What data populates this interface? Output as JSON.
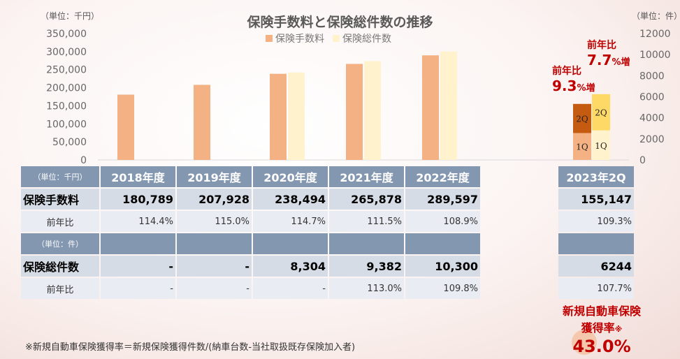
{
  "chart_data": {
    "type": "bar",
    "title": "保険手数料と保険総件数の推移",
    "left_unit": "（単位：千円）",
    "right_unit": "（単位：件）",
    "categories": [
      "2018年度",
      "2019年度",
      "2020年度",
      "2021年度",
      "2022年度"
    ],
    "series": [
      {
        "name": "保険手数料",
        "axis": "left",
        "color": "#f4b183",
        "values": [
          180789,
          207928,
          238494,
          265878,
          289597
        ]
      },
      {
        "name": "保険総件数",
        "axis": "right",
        "color": "#fff2cc",
        "values": [
          null,
          null,
          8304,
          9382,
          10300
        ]
      }
    ],
    "ylim_left": [
      0,
      350000
    ],
    "ylim_right": [
      0,
      12000
    ],
    "left_ticks": [
      "0",
      "50,000",
      "100,000",
      "150,000",
      "200,000",
      "250,000",
      "300,000",
      "350,000"
    ],
    "right_ticks": [
      "0",
      "2000",
      "4000",
      "6000",
      "8000",
      "10000",
      "12000"
    ],
    "legend_position": "top-center",
    "quarter_bars": {
      "fee": {
        "segments": [
          {
            "label": "1Q",
            "color": "#f4b183"
          },
          {
            "label": "2Q",
            "color": "#c55a11"
          }
        ]
      },
      "count": {
        "segments": [
          {
            "label": "1Q",
            "color": "#fff2cc"
          },
          {
            "label": "2Q",
            "color": "#ffd966"
          }
        ]
      }
    }
  },
  "table": {
    "unit_yen": "（単位：千円）",
    "unit_count": "（単位：件）",
    "years": [
      "2018年度",
      "2019年度",
      "2020年度",
      "2021年度",
      "2022年度"
    ],
    "fee_label": "保険手数料",
    "fee_values": [
      "180,789",
      "207,928",
      "238,494",
      "265,878",
      "289,597"
    ],
    "yoy_label": "前年比",
    "fee_yoy": [
      "114.4%",
      "115.0%",
      "114.7%",
      "111.5%",
      "108.9%"
    ],
    "count_label": "保険総件数",
    "count_values": [
      "-",
      "-",
      "8,304",
      "9,382",
      "10,300"
    ],
    "count_yoy": [
      "-",
      "-",
      "-",
      "113.0%",
      "109.8%"
    ]
  },
  "q2_table": {
    "header": "2023年2Q",
    "fee_value": "155,147",
    "fee_yoy": "109.3%",
    "count_value": "6244",
    "count_yoy": "107.7%"
  },
  "annotations": {
    "fee_growth_label": "前年比",
    "fee_growth_value": "9.3",
    "fee_growth_unit": "%増",
    "count_growth_label": "前年比",
    "count_growth_value": "7.7",
    "count_growth_unit": "%増"
  },
  "rate": {
    "line1": "新規自動車保険",
    "line2": "獲得率",
    "mark": "※",
    "value": "43.0%"
  },
  "footnote": "※新規自動車保険獲得率＝新規保険獲得件数/(納車台数-当社取扱既存保険加入者)"
}
